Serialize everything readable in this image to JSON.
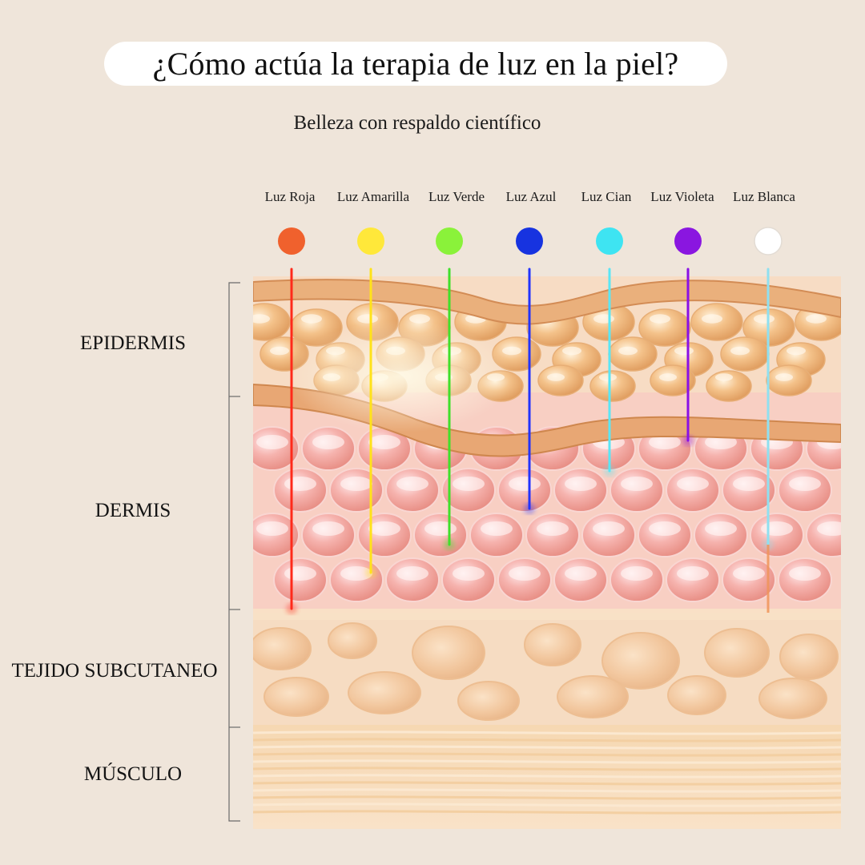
{
  "title": "¿Cómo actúa la terapia de luz en la piel?",
  "subtitle": "Belleza con respaldo científico",
  "lights": [
    {
      "label": "Luz Roja",
      "color": "#f0612d",
      "beam": "#ff2a1a"
    },
    {
      "label": "Luz Amarilla",
      "color": "#ffe83a",
      "beam": "#ffe21a"
    },
    {
      "label": "Luz Verde",
      "color": "#8af23a",
      "beam": "#3fe02a"
    },
    {
      "label": "Luz Azul",
      "color": "#1733e0",
      "beam": "#2233ff"
    },
    {
      "label": "Luz Cian",
      "color": "#3ee4f2",
      "beam": "#5ae6f5"
    },
    {
      "label": "Luz Violeta",
      "color": "#8a16e0",
      "beam": "#8a10e6"
    },
    {
      "label": "Luz Blanca",
      "color": "#ffffff",
      "beam": "#8fe0f0"
    }
  ],
  "layers": [
    {
      "label": "EPIDERMIS"
    },
    {
      "label": "DERMIS"
    },
    {
      "label": "TEJIDO SUBCUTANEO"
    },
    {
      "label": "MÚSCULO"
    }
  ]
}
